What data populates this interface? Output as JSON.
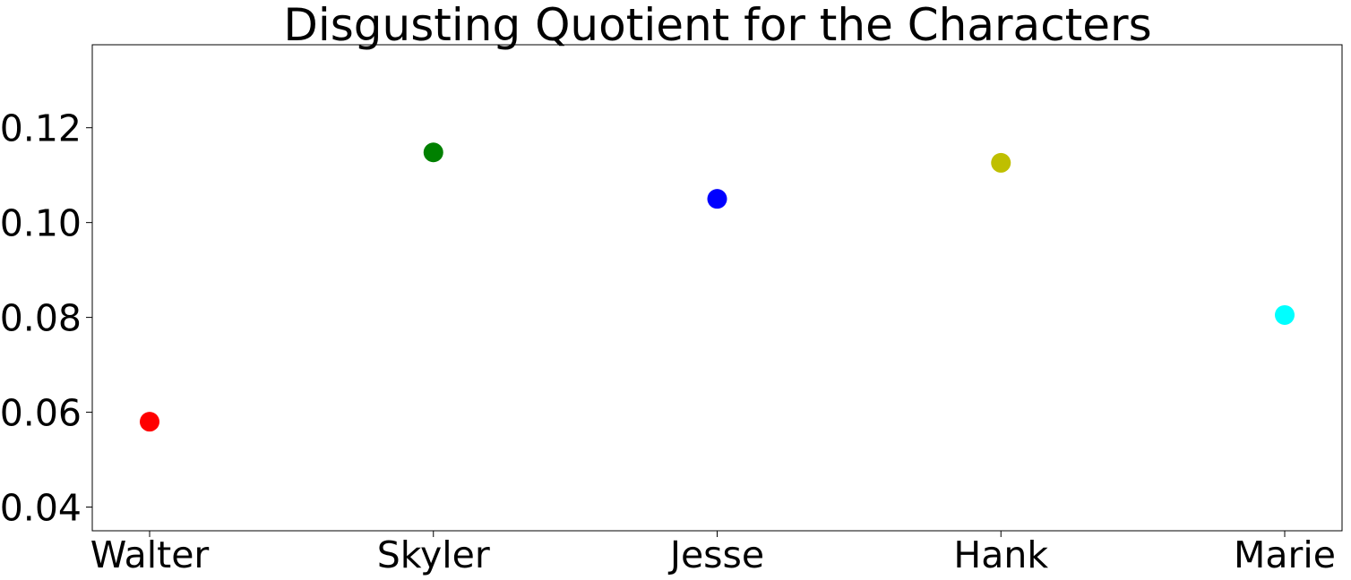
{
  "chart_data": {
    "type": "scatter",
    "title": "Disgusting Quotient for the Characters",
    "xlabel": "",
    "ylabel": "",
    "categories": [
      "Walter",
      "Skyler",
      "Jesse",
      "Hank",
      "Marie"
    ],
    "values": [
      0.058,
      0.1148,
      0.105,
      0.1126,
      0.0805
    ],
    "colors": [
      "#ff0000",
      "#008000",
      "#0000ff",
      "#bfbf00",
      "#00ffff"
    ],
    "ylim": [
      0.035,
      0.1375
    ],
    "yticks": [
      0.04,
      0.06,
      0.08,
      0.1,
      0.12
    ],
    "ytick_labels": [
      "0.04",
      "0.06",
      "0.08",
      "0.10",
      "0.12"
    ],
    "grid": false,
    "legend": "none"
  }
}
